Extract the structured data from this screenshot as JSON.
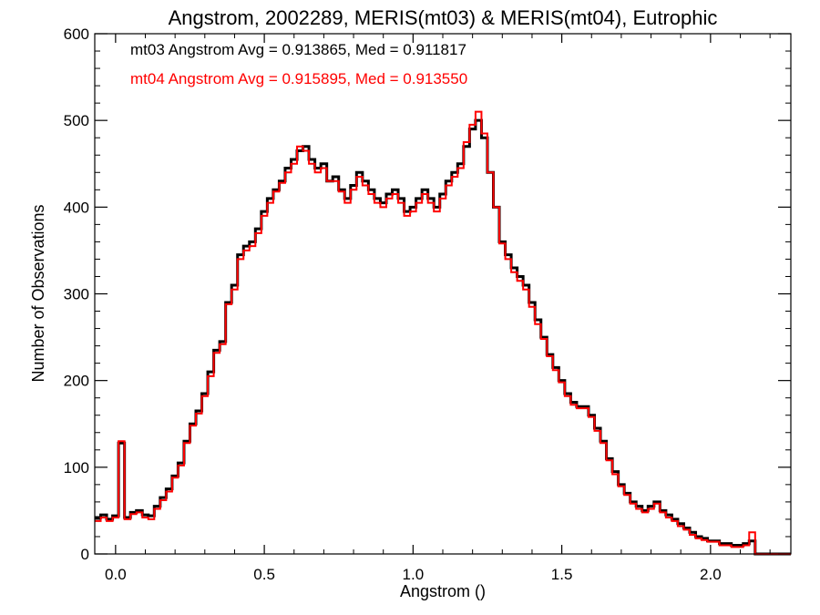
{
  "chart_data": {
    "type": "step",
    "title": "Angstrom, 2002289, MERIS(mt03) & MERIS(mt04), Eutrophic",
    "xlabel": "Angstrom ()",
    "ylabel": "Number of Observations",
    "xlim": [
      -0.07,
      2.27
    ],
    "ylim": [
      0,
      600
    ],
    "x_ticks": [
      0.0,
      0.5,
      1.0,
      1.5,
      2.0
    ],
    "x_tick_labels": [
      "0.0",
      "0.5",
      "1.0",
      "1.5",
      "2.0"
    ],
    "y_ticks": [
      0,
      100,
      200,
      300,
      400,
      500,
      600
    ],
    "y_tick_labels": [
      "0",
      "100",
      "200",
      "300",
      "400",
      "500",
      "600"
    ],
    "grid": false,
    "legend_placement": "top-left",
    "annotations": [
      {
        "text": "mt03 Angstrom Avg = 0.913865, Med = 0.911817",
        "color": "#000000"
      },
      {
        "text": "mt04 Angstrom Avg = 0.915895, Med = 0.913550",
        "color": "#ff0000"
      }
    ],
    "series": [
      {
        "color": "#000000",
        "x": [
          -0.07,
          -0.05,
          -0.03,
          -0.01,
          0.01,
          0.03,
          0.05,
          0.07,
          0.09,
          0.11,
          0.13,
          0.15,
          0.17,
          0.19,
          0.21,
          0.23,
          0.25,
          0.27,
          0.29,
          0.31,
          0.33,
          0.35,
          0.37,
          0.39,
          0.41,
          0.43,
          0.45,
          0.47,
          0.49,
          0.51,
          0.53,
          0.55,
          0.57,
          0.59,
          0.61,
          0.63,
          0.65,
          0.67,
          0.69,
          0.71,
          0.73,
          0.75,
          0.77,
          0.79,
          0.81,
          0.83,
          0.85,
          0.87,
          0.89,
          0.91,
          0.93,
          0.95,
          0.97,
          0.99,
          1.01,
          1.03,
          1.05,
          1.07,
          1.09,
          1.11,
          1.13,
          1.15,
          1.17,
          1.19,
          1.21,
          1.23,
          1.25,
          1.27,
          1.29,
          1.31,
          1.33,
          1.35,
          1.37,
          1.39,
          1.41,
          1.43,
          1.45,
          1.47,
          1.49,
          1.51,
          1.53,
          1.55,
          1.57,
          1.59,
          1.61,
          1.63,
          1.65,
          1.67,
          1.69,
          1.71,
          1.73,
          1.75,
          1.77,
          1.79,
          1.81,
          1.83,
          1.85,
          1.87,
          1.89,
          1.91,
          1.93,
          1.95,
          1.97,
          1.99,
          2.01,
          2.03,
          2.05,
          2.07,
          2.09,
          2.11,
          2.13,
          2.15,
          2.17,
          2.19,
          2.21,
          2.23,
          2.25
        ],
        "values": [
          42,
          45,
          40,
          44,
          128,
          42,
          48,
          50,
          45,
          44,
          55,
          65,
          75,
          90,
          105,
          130,
          150,
          165,
          185,
          210,
          235,
          245,
          290,
          310,
          345,
          355,
          360,
          375,
          395,
          410,
          420,
          430,
          445,
          455,
          465,
          470,
          455,
          445,
          450,
          430,
          435,
          420,
          410,
          425,
          440,
          430,
          420,
          410,
          405,
          415,
          420,
          410,
          395,
          400,
          410,
          420,
          410,
          400,
          415,
          430,
          440,
          450,
          470,
          490,
          500,
          480,
          440,
          400,
          360,
          345,
          330,
          320,
          310,
          290,
          270,
          250,
          230,
          215,
          200,
          185,
          175,
          170,
          170,
          160,
          145,
          130,
          110,
          95,
          80,
          70,
          60,
          55,
          50,
          55,
          60,
          50,
          45,
          40,
          35,
          30,
          25,
          20,
          18,
          15,
          15,
          12,
          12,
          10,
          10,
          12,
          15,
          0,
          0,
          0,
          0,
          0,
          0
        ]
      },
      {
        "color": "#ff0000",
        "x": [
          -0.07,
          -0.05,
          -0.03,
          -0.01,
          0.01,
          0.03,
          0.05,
          0.07,
          0.09,
          0.11,
          0.13,
          0.15,
          0.17,
          0.19,
          0.21,
          0.23,
          0.25,
          0.27,
          0.29,
          0.31,
          0.33,
          0.35,
          0.37,
          0.39,
          0.41,
          0.43,
          0.45,
          0.47,
          0.49,
          0.51,
          0.53,
          0.55,
          0.57,
          0.59,
          0.61,
          0.63,
          0.65,
          0.67,
          0.69,
          0.71,
          0.73,
          0.75,
          0.77,
          0.79,
          0.81,
          0.83,
          0.85,
          0.87,
          0.89,
          0.91,
          0.93,
          0.95,
          0.97,
          0.99,
          1.01,
          1.03,
          1.05,
          1.07,
          1.09,
          1.11,
          1.13,
          1.15,
          1.17,
          1.19,
          1.21,
          1.23,
          1.25,
          1.27,
          1.29,
          1.31,
          1.33,
          1.35,
          1.37,
          1.39,
          1.41,
          1.43,
          1.45,
          1.47,
          1.49,
          1.51,
          1.53,
          1.55,
          1.57,
          1.59,
          1.61,
          1.63,
          1.65,
          1.67,
          1.69,
          1.71,
          1.73,
          1.75,
          1.77,
          1.79,
          1.81,
          1.83,
          1.85,
          1.87,
          1.89,
          1.91,
          1.93,
          1.95,
          1.97,
          1.99,
          2.01,
          2.03,
          2.05,
          2.07,
          2.09,
          2.11,
          2.13,
          2.15,
          2.17,
          2.19,
          2.21,
          2.23,
          2.25
        ],
        "values": [
          38,
          42,
          38,
          42,
          130,
          40,
          46,
          48,
          42,
          40,
          52,
          62,
          72,
          88,
          102,
          128,
          148,
          162,
          182,
          205,
          232,
          242,
          288,
          305,
          340,
          350,
          355,
          370,
          390,
          405,
          418,
          428,
          440,
          450,
          470,
          465,
          450,
          440,
          445,
          430,
          430,
          418,
          405,
          420,
          435,
          425,
          415,
          405,
          400,
          410,
          415,
          405,
          390,
          395,
          405,
          415,
          405,
          395,
          410,
          425,
          435,
          445,
          475,
          495,
          510,
          485,
          440,
          400,
          358,
          340,
          325,
          315,
          305,
          285,
          265,
          248,
          228,
          212,
          198,
          182,
          172,
          168,
          168,
          158,
          142,
          128,
          108,
          92,
          78,
          68,
          58,
          52,
          48,
          52,
          58,
          48,
          42,
          38,
          32,
          28,
          22,
          18,
          16,
          14,
          14,
          10,
          10,
          8,
          8,
          10,
          25,
          0,
          0,
          0,
          0,
          0,
          0
        ]
      }
    ]
  }
}
